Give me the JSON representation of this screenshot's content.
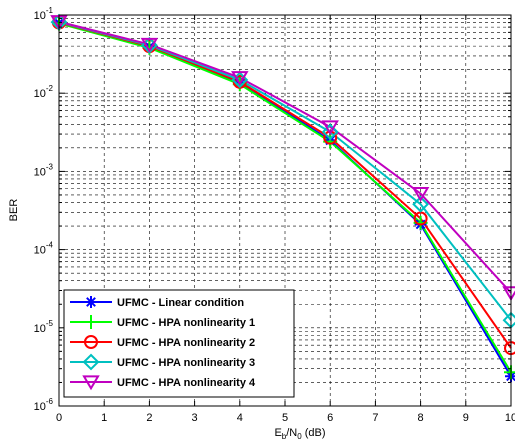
{
  "chart_data": {
    "type": "line",
    "xlabel": {
      "base": "E",
      "sub1": "b",
      "mid": "/N",
      "sub2": "0",
      "tail": " (dB)"
    },
    "ylabel": "BER",
    "xlim": [
      0,
      10
    ],
    "ylim": [
      1e-06,
      0.1
    ],
    "yscale": "log",
    "grid": true,
    "legend_position": "bottom-left",
    "x_ticks": [
      "0",
      "1",
      "2",
      "3",
      "4",
      "5",
      "6",
      "7",
      "8",
      "9",
      "10"
    ],
    "y_ticks": [
      {
        "value": 0.1,
        "base": "10",
        "exp": "-1"
      },
      {
        "value": 0.01,
        "base": "10",
        "exp": "-2"
      },
      {
        "value": 0.001,
        "base": "10",
        "exp": "-3"
      },
      {
        "value": 0.0001,
        "base": "10",
        "exp": "-4"
      },
      {
        "value": 1e-05,
        "base": "10",
        "exp": "-5"
      },
      {
        "value": 1e-06,
        "base": "10",
        "exp": "-6"
      }
    ],
    "x": [
      0,
      2,
      4,
      6,
      8,
      10
    ],
    "series": [
      {
        "name": "UFMC - Linear condition",
        "color": "#0000ff",
        "marker": "asterisk",
        "values": [
          0.079,
          0.039,
          0.0135,
          0.0025,
          0.00021,
          2.4e-06
        ]
      },
      {
        "name": "UFMC - HPA nonlinearity 1",
        "color": "#00ff00",
        "marker": "plus",
        "values": [
          0.078,
          0.038,
          0.013,
          0.0024,
          0.00022,
          2.7e-06
        ]
      },
      {
        "name": "UFMC - HPA nonlinearity 2",
        "color": "#ff0000",
        "marker": "circle",
        "values": [
          0.08,
          0.04,
          0.014,
          0.0027,
          0.00025,
          5.5e-06
        ]
      },
      {
        "name": "UFMC - HPA nonlinearity 3",
        "color": "#00c0c0",
        "marker": "diamond",
        "values": [
          0.081,
          0.041,
          0.0148,
          0.0032,
          0.00038,
          1.25e-05
        ]
      },
      {
        "name": "UFMC - HPA nonlinearity 4",
        "color": "#c000c0",
        "marker": "triangle-down",
        "values": [
          0.082,
          0.042,
          0.0158,
          0.0037,
          0.00052,
          2.8e-05
        ]
      }
    ]
  }
}
